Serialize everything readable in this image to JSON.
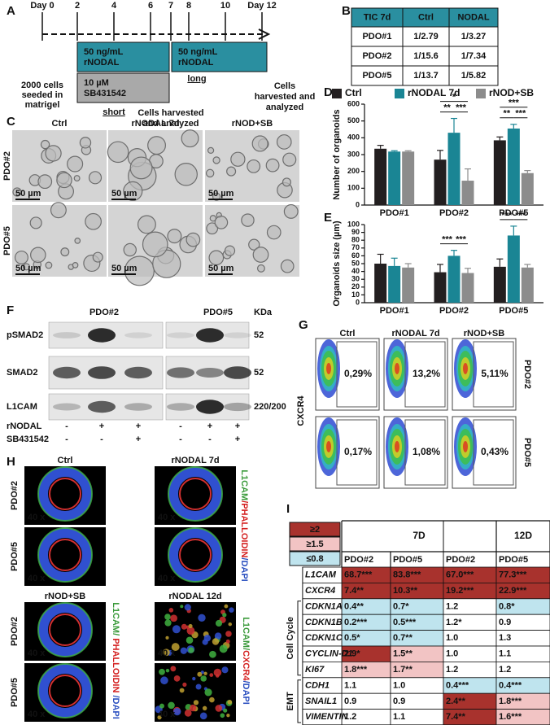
{
  "panels": [
    "A",
    "B",
    "C",
    "D",
    "E",
    "F",
    "G",
    "H",
    "I"
  ],
  "timeline": {
    "days": [
      "Day 0",
      "2",
      "4",
      "6",
      "7",
      "8",
      "10",
      "Day 12"
    ],
    "nodal_box_short": [
      "50 ng/mL",
      "rNODAL"
    ],
    "sb_box": [
      "10 µM",
      "SB431542"
    ],
    "nodal_box_long": [
      "50 ng/mL",
      "rNODAL"
    ],
    "seeded": [
      "2000 cells",
      "seeded in",
      "matrigel"
    ],
    "short": "short",
    "harvest_short": [
      "Cells harvested",
      "and analyzed"
    ],
    "long": "long",
    "harvest_long": [
      "Cells",
      "harvested and",
      "analyzed"
    ]
  },
  "tic_table": {
    "header": [
      "TIC 7d",
      "Ctrl",
      "NODAL"
    ],
    "rows": [
      [
        "PDO#1",
        "1/2.79",
        "1/3.27"
      ],
      [
        "PDO#2",
        "1/15.6",
        "1/7.34"
      ],
      [
        "PDO#5",
        "1/13.7",
        "1/5.82"
      ]
    ]
  },
  "organoid_images": {
    "columns": [
      "Ctrl",
      "rNODAL 7d",
      "rNOD+SB"
    ],
    "rows": [
      "PDO#2",
      "PDO#5"
    ],
    "scale_bar": "50 µm"
  },
  "chart_data": [
    {
      "type": "bar",
      "y_label": "Number of organoids",
      "categories": [
        "PDO#1",
        "PDO#2",
        "PDO#5"
      ],
      "series": [
        {
          "name": "Ctrl",
          "color": "#231f20",
          "values": [
            335,
            270,
            385
          ],
          "errors": [
            20,
            55,
            20
          ]
        },
        {
          "name": "rNODAL 7d",
          "color": "#1a8594",
          "values": [
            318,
            430,
            455
          ],
          "errors": [
            5,
            85,
            25
          ]
        },
        {
          "name": "rNOD+SB",
          "color": "#8c8c8c",
          "values": [
            318,
            145,
            190
          ],
          "errors": [
            5,
            70,
            15
          ]
        }
      ],
      "ylim": [
        0,
        600
      ],
      "yticks": [
        0,
        100,
        200,
        300,
        400,
        500,
        600
      ],
      "legend": "top",
      "annotations": [
        {
          "category": 1,
          "pair": [
            0,
            1
          ],
          "label": "**"
        },
        {
          "category": 1,
          "pair": [
            1,
            2
          ],
          "label": "***"
        },
        {
          "category": 1,
          "pair": [
            0,
            2
          ],
          "label": "*"
        },
        {
          "category": 2,
          "pair": [
            0,
            1
          ],
          "label": "**"
        },
        {
          "category": 2,
          "pair": [
            1,
            2
          ],
          "label": "***"
        },
        {
          "category": 2,
          "pair": [
            0,
            2
          ],
          "label": "***"
        }
      ]
    },
    {
      "type": "bar",
      "y_label": "Organoids size (µm)",
      "categories": [
        "PDO#1",
        "PDO#2",
        "PDO#5"
      ],
      "series": [
        {
          "color": "#231f20",
          "values": [
            50,
            39,
            46
          ],
          "errors": [
            12,
            10,
            10
          ]
        },
        {
          "color": "#1a8594",
          "values": [
            47,
            60,
            86
          ],
          "errors": [
            10,
            7,
            12
          ]
        },
        {
          "color": "#8c8c8c",
          "values": [
            45,
            38,
            45
          ],
          "errors": [
            5,
            6,
            4
          ]
        }
      ],
      "ylim": [
        0,
        100
      ],
      "yticks": [
        0,
        10,
        20,
        30,
        40,
        50,
        60,
        70,
        80,
        90,
        100
      ],
      "annotations": [
        {
          "category": 1,
          "pair": [
            0,
            1
          ],
          "label": "***"
        },
        {
          "category": 1,
          "pair": [
            1,
            2
          ],
          "label": "***"
        },
        {
          "category": 2,
          "pair": [
            0,
            1
          ],
          "label": "***"
        },
        {
          "category": 2,
          "pair": [
            1,
            2
          ],
          "label": "***"
        }
      ]
    }
  ],
  "western_blot": {
    "groups": [
      "PDO#2",
      "PDO#5"
    ],
    "unit": "KDa",
    "proteins": [
      {
        "name": "pSMAD2",
        "kda": "52"
      },
      {
        "name": "SMAD2",
        "kda": "52"
      },
      {
        "name": "L1CAM",
        "kda": "220/200"
      }
    ],
    "treatments": [
      {
        "name": "rNODAL",
        "signs": [
          "-",
          "+",
          "+",
          "-",
          "+",
          "+"
        ]
      },
      {
        "name": "SB431542",
        "signs": [
          "-",
          "-",
          "+",
          "-",
          "-",
          "+"
        ]
      }
    ]
  },
  "flow": {
    "columns": [
      "Ctrl",
      "rNODAL 7d",
      "rNOD+SB"
    ],
    "rows": [
      "PDO#2",
      "PDO#5"
    ],
    "y_label": "CXCR4",
    "percentages": [
      [
        "0,29%",
        "13,2%",
        "5,11%"
      ],
      [
        "0,17%",
        "1,08%",
        "0,43%"
      ]
    ]
  },
  "fluorescence": {
    "top": {
      "columns": [
        "Ctrl",
        "rNODAL 7d"
      ],
      "stain": [
        {
          "text": "L1CAM",
          "color": "#3a9a3a"
        },
        {
          "text": "/PHALLOIDIN",
          "color": "#d42020"
        },
        {
          "text": "/DAPI",
          "color": "#2b50c0"
        }
      ]
    },
    "bottom": {
      "columns": [
        "rNOD+SB",
        "rNODAL 12d"
      ],
      "stains": [
        [
          {
            "text": "L1CAM/",
            "color": "#3a9a3a"
          },
          {
            "text": " PHALLOIDIN ",
            "color": "#d42020"
          },
          {
            "text": "/DAPI",
            "color": "#2b50c0"
          }
        ],
        [
          {
            "text": "L1CAM/",
            "color": "#3a9a3a"
          },
          {
            "text": "CXCR4",
            "color": "#d42020"
          },
          {
            "text": "/DAPI",
            "color": "#2b50c0"
          }
        ]
      ]
    },
    "rows": [
      "PDO#2",
      "PDO#5"
    ],
    "magnification": "40 x"
  },
  "gene_table": {
    "legend": [
      {
        "label": "≥2",
        "color": "#a8322d"
      },
      {
        "label": "≥1.5",
        "color": "#f2c4c4"
      },
      {
        "label": "≤0.8",
        "color": "#bfe4ee"
      }
    ],
    "times": [
      "7D",
      "12D"
    ],
    "subheader": [
      "PDO#2",
      "PDO#5",
      "PDO#2",
      "PDO#5"
    ],
    "groups": [
      {
        "name": "Cell Cycle",
        "first": 2,
        "last": 6
      },
      {
        "name": "EMT",
        "first": 7,
        "last": 9
      }
    ],
    "rows": [
      {
        "gene": "L1CAM",
        "cells": [
          "68.7***",
          "83.8***",
          "67.0***",
          "77.3***"
        ],
        "fills": [
          "#a8322d",
          "#a8322d",
          "#a8322d",
          "#a8322d"
        ]
      },
      {
        "gene": "CXCR4",
        "cells": [
          "7.4**",
          "10.3**",
          "19.2***",
          "22.9***"
        ],
        "fills": [
          "#a8322d",
          "#a8322d",
          "#a8322d",
          "#a8322d"
        ]
      },
      {
        "gene": "CDKN1A",
        "cells": [
          "0.4**",
          "0.7*",
          "1.2",
          "0.8*"
        ],
        "fills": [
          "#bfe4ee",
          "#bfe4ee",
          "#ffffff",
          "#bfe4ee"
        ]
      },
      {
        "gene": "CDKN1B",
        "cells": [
          "0.2***",
          "0.5***",
          "1.2*",
          "0.9"
        ],
        "fills": [
          "#bfe4ee",
          "#bfe4ee",
          "#ffffff",
          "#ffffff"
        ]
      },
      {
        "gene": "CDKN1C",
        "cells": [
          "0.5*",
          "0.7**",
          "1.0",
          "1.3"
        ],
        "fills": [
          "#bfe4ee",
          "#bfe4ee",
          "#ffffff",
          "#ffffff"
        ]
      },
      {
        "gene": "CYCLIN-D1",
        "cells": [
          "2.9*",
          "1.5**",
          "1.0",
          "1.1"
        ],
        "fills": [
          "#a8322d",
          "#f2c4c4",
          "#ffffff",
          "#ffffff"
        ]
      },
      {
        "gene": "KI67",
        "cells": [
          "1.8***",
          "1.7**",
          "1.2",
          "1.2"
        ],
        "fills": [
          "#f2c4c4",
          "#f2c4c4",
          "#ffffff",
          "#ffffff"
        ]
      },
      {
        "gene": "CDH1",
        "cells": [
          "1.1",
          "1.0",
          "0.4***",
          "0.4***"
        ],
        "fills": [
          "#ffffff",
          "#ffffff",
          "#bfe4ee",
          "#bfe4ee"
        ]
      },
      {
        "gene": "SNAIL1",
        "cells": [
          "0.9",
          "0.9",
          "2.4**",
          "1.8***"
        ],
        "fills": [
          "#ffffff",
          "#ffffff",
          "#a8322d",
          "#f2c4c4"
        ]
      },
      {
        "gene": "VIMENTIN",
        "cells": [
          "1.2",
          "1.1",
          "7.4**",
          "1.6***"
        ],
        "fills": [
          "#ffffff",
          "#ffffff",
          "#a8322d",
          "#f2c4c4"
        ]
      }
    ]
  }
}
